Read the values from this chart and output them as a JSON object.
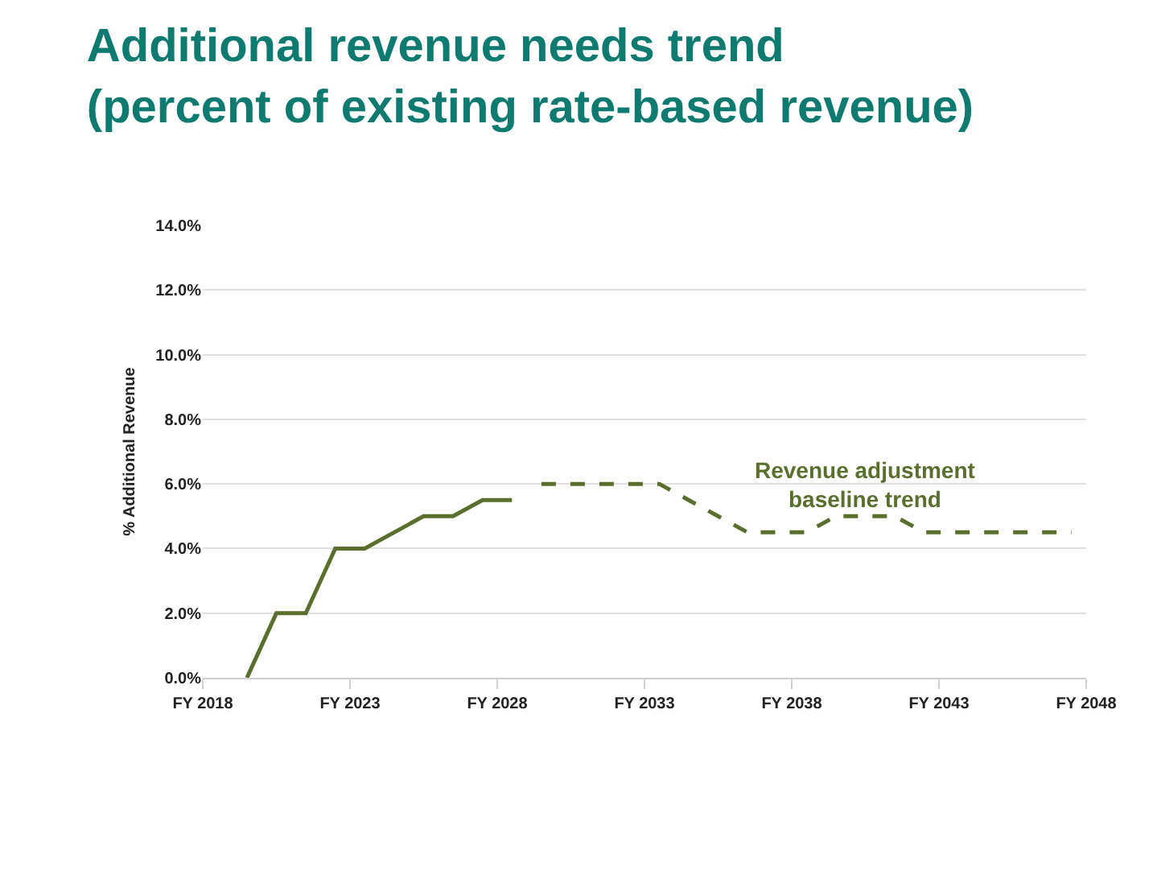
{
  "chart_data": {
    "type": "line",
    "title": "Additional revenue needs trend\n(percent of existing rate-based revenue)",
    "ylabel": "% Additional Revenue",
    "categories": [
      "FY 2018",
      null,
      null,
      null,
      null,
      null,
      null,
      null,
      null,
      null,
      "FY 2023",
      null,
      null,
      null,
      null,
      null,
      null,
      null,
      null,
      null,
      "FY 2028",
      null,
      null,
      null,
      null,
      null,
      null,
      null,
      null,
      null,
      "FY 2033",
      null,
      null,
      null,
      null,
      null,
      null,
      null,
      null,
      null,
      "FY 2038",
      null,
      null,
      null,
      null,
      null,
      null,
      null,
      null,
      null,
      "FY 2043",
      null,
      null,
      null,
      null,
      null,
      null,
      null,
      null,
      null,
      "FY 2048"
    ],
    "ylim": [
      0,
      14
    ],
    "yticks": [
      {
        "value": 0,
        "label": "0.0%"
      },
      {
        "value": 2,
        "label": "2.0%"
      },
      {
        "value": 4,
        "label": "4.0%"
      },
      {
        "value": 6,
        "label": "6.0%"
      },
      {
        "value": 8,
        "label": "8.0%"
      },
      {
        "value": 10,
        "label": "10.0%"
      },
      {
        "value": 12,
        "label": "12.0%"
      },
      {
        "value": 14,
        "label": "14.0%"
      }
    ],
    "grid": "y",
    "legend": false,
    "marker": "none",
    "series": [
      {
        "color": "#5a6e2e",
        "line_style": "solid",
        "values": [
          null,
          null,
          null,
          0,
          1,
          2,
          2,
          2,
          3,
          4,
          4,
          4,
          4.25,
          4.5,
          4.75,
          5,
          5,
          5,
          5.25,
          5.5,
          5.5,
          5.5,
          null,
          null,
          null,
          null,
          null,
          null,
          null,
          null,
          null,
          null,
          null,
          null,
          null,
          null,
          null,
          null,
          null,
          null,
          null,
          null,
          null,
          null,
          null,
          null,
          null,
          null,
          null,
          null,
          null,
          null,
          null,
          null,
          null,
          null,
          null,
          null,
          null,
          null,
          null
        ]
      },
      {
        "name": "Revenue adjustment\nbaseline trend",
        "color": "#5a6e2e",
        "line_style": "dashed",
        "values": [
          null,
          null,
          null,
          null,
          null,
          null,
          null,
          null,
          null,
          null,
          null,
          null,
          null,
          null,
          null,
          null,
          null,
          null,
          null,
          null,
          null,
          null,
          null,
          6,
          6,
          6,
          6,
          6,
          6,
          6,
          6,
          6,
          5.75,
          5.5,
          5.25,
          5,
          4.75,
          4.5,
          4.5,
          4.5,
          4.5,
          4.5,
          4.75,
          5,
          5,
          5,
          5,
          5,
          4.75,
          4.5,
          4.5,
          4.5,
          4.5,
          4.5,
          4.5,
          4.5,
          4.5,
          4.5,
          4.5,
          4.5,
          null
        ]
      }
    ]
  }
}
